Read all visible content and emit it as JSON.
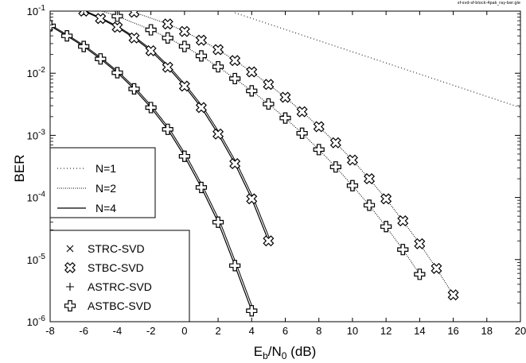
{
  "figure_name": "sf-svd-sf-block-4pak_ray-ber.gle",
  "chart_data": {
    "type": "line",
    "xlabel": {
      "main": "E",
      "sub": "b",
      "mid": "/N",
      "sub2": "0",
      "tail": " (dB)"
    },
    "ylabel": "BER",
    "xlim": [
      -8,
      20
    ],
    "ylim": [
      1e-06,
      0.1
    ],
    "yscale": "log",
    "xticks": [
      "-8",
      "-6",
      "-4",
      "-2",
      "0",
      "2",
      "4",
      "6",
      "8",
      "10",
      "12",
      "14",
      "16",
      "18",
      "20"
    ],
    "yticks": [
      {
        "base": "10",
        "exp": "-1",
        "value": 0.1
      },
      {
        "base": "10",
        "exp": "-2",
        "value": 0.01
      },
      {
        "base": "10",
        "exp": "-3",
        "value": 0.001
      },
      {
        "base": "10",
        "exp": "-4",
        "value": 0.0001
      },
      {
        "base": "10",
        "exp": "-5",
        "value": 1e-05
      },
      {
        "base": "10",
        "exp": "-6",
        "value": 1e-06
      }
    ],
    "legend_lines": [
      {
        "label": "N=1",
        "style": "dotted-sparse"
      },
      {
        "label": "N=2",
        "style": "dotted"
      },
      {
        "label": "N=4",
        "style": "solid"
      }
    ],
    "legend_markers": [
      {
        "label": "STRC-SVD",
        "marker": "x"
      },
      {
        "label": "STBC-SVD",
        "marker": "xbold"
      },
      {
        "label": "ASTRC-SVD",
        "marker": "plus"
      },
      {
        "label": "ASTBC-SVD",
        "marker": "plusbold"
      }
    ],
    "series": [
      {
        "style": "dotted-sparse",
        "marker": "none",
        "x": [
          3,
          20
        ],
        "y": [
          0.094,
          0.0028
        ]
      },
      {
        "style": "dotted",
        "marker": "xbold",
        "x": [
          -5,
          -3,
          -1,
          0,
          1,
          2,
          3,
          4,
          5,
          6,
          7,
          8,
          9,
          10,
          11,
          12,
          13,
          14,
          15,
          16
        ],
        "y": [
          0.14,
          0.096,
          0.062,
          0.047,
          0.034,
          0.024,
          0.016,
          0.0105,
          0.0066,
          0.0041,
          0.0024,
          0.00138,
          0.00076,
          0.0004,
          0.0002,
          9.5e-05,
          4.2e-05,
          1.8e-05,
          7.2e-06,
          2.7e-06
        ]
      },
      {
        "style": "dotted",
        "marker": "plusbold",
        "x": [
          -6,
          -4,
          -2,
          -1,
          0,
          1,
          2,
          3,
          4,
          5,
          6,
          7,
          8,
          9,
          10,
          11,
          12,
          13,
          14
        ],
        "y": [
          0.125,
          0.083,
          0.05,
          0.037,
          0.027,
          0.019,
          0.0127,
          0.0082,
          0.0052,
          0.0032,
          0.0019,
          0.00108,
          0.00059,
          0.00031,
          0.000155,
          7.5e-05,
          3.4e-05,
          1.45e-05,
          5.8e-06
        ]
      },
      {
        "style": "solid",
        "marker": "xbold",
        "x": [
          -7,
          -6,
          -5,
          -4,
          -3,
          -2,
          -1,
          0,
          1,
          2,
          3,
          4,
          5
        ],
        "y": [
          0.13,
          0.1,
          0.076,
          0.055,
          0.037,
          0.023,
          0.0125,
          0.0062,
          0.0028,
          0.00105,
          0.00035,
          9.5e-05,
          2e-05
        ]
      },
      {
        "style": "solid",
        "marker": "plusbold",
        "x": [
          -8,
          -7,
          -6,
          -5,
          -4,
          -3,
          -2,
          -1,
          0,
          1,
          2,
          3,
          4
        ],
        "y": [
          0.058,
          0.04,
          0.027,
          0.017,
          0.0102,
          0.0056,
          0.0028,
          0.00125,
          0.00046,
          0.000145,
          4e-05,
          8e-06,
          1.5e-06
        ]
      }
    ]
  }
}
